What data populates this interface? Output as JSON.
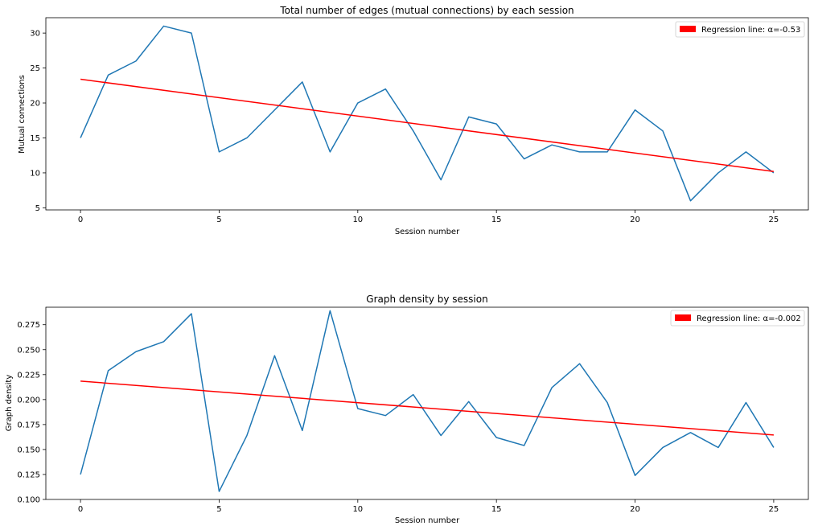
{
  "chart_data": [
    {
      "type": "line",
      "title": "Total number of edges (mutual connections) by each session",
      "xlabel": "Session number",
      "ylabel": "Mutual connections",
      "xlim": [
        -1.25,
        26.25
      ],
      "ylim": [
        4.7,
        32.2
      ],
      "xticks": [
        0,
        5,
        10,
        15,
        20,
        25
      ],
      "yticks": [
        5,
        10,
        15,
        20,
        25,
        30
      ],
      "ytick_labels": [
        "5",
        "10",
        "15",
        "20",
        "25",
        "30"
      ],
      "legend_position": "top-right",
      "x": [
        0,
        1,
        2,
        3,
        4,
        5,
        6,
        7,
        8,
        9,
        10,
        11,
        12,
        13,
        14,
        15,
        16,
        17,
        18,
        19,
        20,
        21,
        22,
        23,
        24,
        25
      ],
      "series": [
        {
          "values": [
            15,
            24,
            26,
            31,
            30,
            13,
            15,
            19,
            23,
            13,
            20,
            22,
            16,
            9,
            18,
            17,
            12,
            14,
            13,
            13,
            19,
            16,
            6,
            10,
            13,
            10
          ],
          "color": "#1f77b4"
        }
      ],
      "regression": {
        "name": "Regression line: α=-0.53",
        "x": [
          0,
          25
        ],
        "y": [
          23.4,
          10.2
        ],
        "color": "#ff0000"
      }
    },
    {
      "type": "line",
      "title": "Graph density by session",
      "xlabel": "Session number",
      "ylabel": "Graph density",
      "xlim": [
        -1.25,
        26.25
      ],
      "ylim": [
        0.1,
        0.2925
      ],
      "xticks": [
        0,
        5,
        10,
        15,
        20,
        25
      ],
      "yticks": [
        0.1,
        0.125,
        0.15,
        0.175,
        0.2,
        0.225,
        0.25,
        0.275
      ],
      "ytick_labels": [
        "0.100",
        "0.125",
        "0.150",
        "0.175",
        "0.200",
        "0.225",
        "0.250",
        "0.275"
      ],
      "legend_position": "top-right",
      "x": [
        0,
        1,
        2,
        3,
        4,
        5,
        6,
        7,
        8,
        9,
        10,
        11,
        12,
        13,
        14,
        15,
        16,
        17,
        18,
        19,
        20,
        21,
        22,
        23,
        24,
        25
      ],
      "series": [
        {
          "values": [
            0.125,
            0.229,
            0.248,
            0.258,
            0.286,
            0.108,
            0.164,
            0.244,
            0.169,
            0.289,
            0.191,
            0.184,
            0.205,
            0.164,
            0.198,
            0.162,
            0.154,
            0.212,
            0.236,
            0.197,
            0.124,
            0.152,
            0.167,
            0.152,
            0.197,
            0.152
          ],
          "color": "#1f77b4"
        }
      ],
      "regression": {
        "name": "Regression line: α=-0.002",
        "x": [
          0,
          25
        ],
        "y": [
          0.2185,
          0.1645
        ],
        "color": "#ff0000"
      }
    }
  ]
}
